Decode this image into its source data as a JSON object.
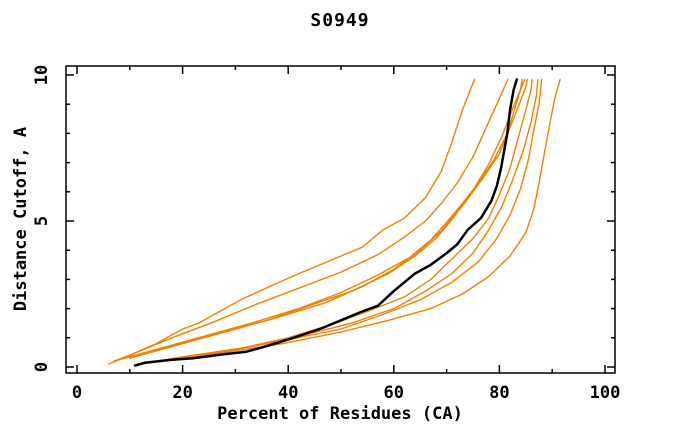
{
  "window": {
    "title": "S0949",
    "background": "#ffffff"
  },
  "chart_data": {
    "type": "line",
    "title": "S0949",
    "xlabel": "Percent of Residues (CA)",
    "ylabel": "Distance Cutoff, A",
    "xlim": [
      0,
      100
    ],
    "ylim": [
      0,
      10
    ],
    "grid": false,
    "legend": "none",
    "x_major_ticks": [
      0,
      20,
      40,
      60,
      80,
      100
    ],
    "x_minor_ticks": [
      10,
      30,
      50,
      70,
      90
    ],
    "y_major_ticks": [
      0,
      5,
      10
    ],
    "y_minor_ticks": [
      1,
      2,
      3,
      4,
      6,
      7,
      8,
      9
    ],
    "colors": {
      "reference": "#000000",
      "prediction": "#f08200",
      "frame": "#000000"
    },
    "series": [
      {
        "name": "prediction-1",
        "color": "#f08200",
        "width": 1.4,
        "points": [
          [
            6,
            0.1
          ],
          [
            10,
            0.4
          ],
          [
            15,
            0.8
          ],
          [
            20,
            1.3
          ],
          [
            23,
            1.5
          ],
          [
            27,
            1.9
          ],
          [
            31,
            2.3
          ],
          [
            37,
            2.8
          ],
          [
            42,
            3.2
          ],
          [
            50,
            3.8
          ],
          [
            54,
            4.1
          ],
          [
            58,
            4.7
          ],
          [
            62,
            5.1
          ],
          [
            66,
            5.8
          ],
          [
            69,
            6.7
          ],
          [
            71,
            7.7
          ],
          [
            73,
            8.8
          ],
          [
            74.5,
            9.5
          ],
          [
            75.3,
            9.85
          ]
        ]
      },
      {
        "name": "prediction-2",
        "color": "#f08200",
        "width": 1.4,
        "points": [
          [
            7,
            0.2
          ],
          [
            12,
            0.55
          ],
          [
            18,
            1.0
          ],
          [
            26,
            1.55
          ],
          [
            34,
            2.15
          ],
          [
            42,
            2.7
          ],
          [
            50,
            3.25
          ],
          [
            57,
            3.85
          ],
          [
            62,
            4.45
          ],
          [
            66,
            5.0
          ],
          [
            69,
            5.6
          ],
          [
            72,
            6.3
          ],
          [
            75,
            7.2
          ],
          [
            77.5,
            8.2
          ],
          [
            79.5,
            9.0
          ],
          [
            81,
            9.6
          ],
          [
            81.6,
            9.85
          ]
        ]
      },
      {
        "name": "prediction-3",
        "color": "#f08200",
        "width": 1.4,
        "points": [
          [
            8,
            0.25
          ],
          [
            15,
            0.6
          ],
          [
            24,
            1.05
          ],
          [
            33,
            1.5
          ],
          [
            42,
            2.0
          ],
          [
            50,
            2.55
          ],
          [
            57,
            3.15
          ],
          [
            63,
            3.75
          ],
          [
            67,
            4.35
          ],
          [
            70,
            4.95
          ],
          [
            73,
            5.6
          ],
          [
            76,
            6.3
          ],
          [
            79,
            7.1
          ],
          [
            81.5,
            8.0
          ],
          [
            83,
            8.9
          ],
          [
            84,
            9.5
          ],
          [
            84.3,
            9.85
          ]
        ]
      },
      {
        "name": "prediction-4",
        "color": "#f08200",
        "width": 1.4,
        "points": [
          [
            9,
            0.3
          ],
          [
            17,
            0.7
          ],
          [
            27,
            1.15
          ],
          [
            36,
            1.6
          ],
          [
            44,
            2.1
          ],
          [
            52,
            2.6
          ],
          [
            59,
            3.2
          ],
          [
            64,
            3.8
          ],
          [
            68,
            4.4
          ],
          [
            71,
            5.05
          ],
          [
            74,
            5.75
          ],
          [
            77,
            6.5
          ],
          [
            80,
            7.3
          ],
          [
            82,
            8.2
          ],
          [
            84,
            9.1
          ],
          [
            85,
            9.6
          ],
          [
            85.3,
            9.85
          ]
        ]
      },
      {
        "name": "prediction-5",
        "color": "#f08200",
        "width": 1.4,
        "points": [
          [
            12,
            0.1
          ],
          [
            20,
            0.35
          ],
          [
            30,
            0.6
          ],
          [
            40,
            1.0
          ],
          [
            48,
            1.45
          ],
          [
            55,
            1.9
          ],
          [
            62,
            2.4
          ],
          [
            67,
            3.0
          ],
          [
            71,
            3.7
          ],
          [
            75,
            4.4
          ],
          [
            78,
            5.1
          ],
          [
            80,
            5.9
          ],
          [
            82,
            6.8
          ],
          [
            83.5,
            7.8
          ],
          [
            85,
            8.8
          ],
          [
            86,
            9.5
          ],
          [
            86.2,
            9.85
          ]
        ]
      },
      {
        "name": "prediction-6",
        "color": "#f08200",
        "width": 1.4,
        "points": [
          [
            13,
            0.12
          ],
          [
            22,
            0.4
          ],
          [
            33,
            0.7
          ],
          [
            43,
            1.1
          ],
          [
            52,
            1.5
          ],
          [
            60,
            2.0
          ],
          [
            66,
            2.6
          ],
          [
            71,
            3.2
          ],
          [
            75,
            3.9
          ],
          [
            78,
            4.7
          ],
          [
            80.5,
            5.5
          ],
          [
            82.5,
            6.4
          ],
          [
            84.5,
            7.4
          ],
          [
            86,
            8.4
          ],
          [
            87,
            9.3
          ],
          [
            87.3,
            9.85
          ]
        ]
      },
      {
        "name": "prediction-7",
        "color": "#f08200",
        "width": 1.4,
        "points": [
          [
            14,
            0.15
          ],
          [
            26,
            0.45
          ],
          [
            39,
            0.8
          ],
          [
            50,
            1.2
          ],
          [
            59,
            1.6
          ],
          [
            67,
            2.0
          ],
          [
            73,
            2.5
          ],
          [
            78,
            3.1
          ],
          [
            82,
            3.8
          ],
          [
            85,
            4.6
          ],
          [
            86.5,
            5.4
          ],
          [
            87.5,
            6.3
          ],
          [
            88.5,
            7.3
          ],
          [
            89.5,
            8.3
          ],
          [
            90.5,
            9.2
          ],
          [
            91.5,
            9.85
          ]
        ]
      },
      {
        "name": "prediction-8",
        "color": "#f08200",
        "width": 1.4,
        "points": [
          [
            10,
            0.3
          ],
          [
            18,
            0.7
          ],
          [
            28,
            1.2
          ],
          [
            38,
            1.7
          ],
          [
            47,
            2.2
          ],
          [
            54,
            2.75
          ],
          [
            60,
            3.35
          ],
          [
            65,
            4.0
          ],
          [
            69,
            4.65
          ],
          [
            72,
            5.35
          ],
          [
            75,
            6.05
          ],
          [
            78,
            6.95
          ],
          [
            80.5,
            7.9
          ],
          [
            82.5,
            8.85
          ],
          [
            84,
            9.5
          ],
          [
            84.8,
            9.85
          ]
        ]
      },
      {
        "name": "prediction-9",
        "color": "#f08200",
        "width": 1.4,
        "points": [
          [
            15,
            0.2
          ],
          [
            27,
            0.5
          ],
          [
            39,
            0.9
          ],
          [
            50,
            1.3
          ],
          [
            58,
            1.8
          ],
          [
            65,
            2.3
          ],
          [
            71,
            2.9
          ],
          [
            76,
            3.6
          ],
          [
            79.5,
            4.4
          ],
          [
            82,
            5.2
          ],
          [
            84,
            6.1
          ],
          [
            85.5,
            7.1
          ],
          [
            86.5,
            8.1
          ],
          [
            87.5,
            9.0
          ],
          [
            88,
            9.85
          ]
        ]
      },
      {
        "name": "reference",
        "color": "#000000",
        "width": 2.5,
        "points": [
          [
            11,
            0.05
          ],
          [
            13,
            0.15
          ],
          [
            18,
            0.25
          ],
          [
            22,
            0.3
          ],
          [
            27,
            0.42
          ],
          [
            32,
            0.52
          ],
          [
            36,
            0.72
          ],
          [
            41,
            1.0
          ],
          [
            46,
            1.3
          ],
          [
            50,
            1.6
          ],
          [
            54,
            1.9
          ],
          [
            57,
            2.1
          ],
          [
            60,
            2.6
          ],
          [
            64,
            3.2
          ],
          [
            67,
            3.5
          ],
          [
            70,
            3.9
          ],
          [
            72,
            4.2
          ],
          [
            74,
            4.7
          ],
          [
            76.5,
            5.1
          ],
          [
            78.5,
            5.7
          ],
          [
            79.5,
            6.2
          ],
          [
            80.3,
            6.8
          ],
          [
            80.8,
            7.3
          ],
          [
            81.5,
            8.0
          ],
          [
            82,
            8.8
          ],
          [
            82.7,
            9.5
          ],
          [
            83.3,
            9.85
          ]
        ]
      }
    ]
  }
}
